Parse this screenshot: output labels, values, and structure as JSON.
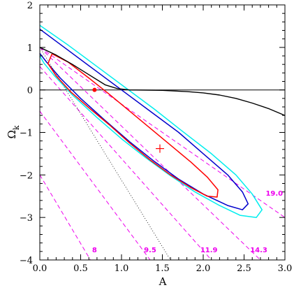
{
  "chart_data": {
    "type": "line",
    "xlabel": "A",
    "ylabel": "Ω",
    "ylabel_sub": "k",
    "xlim": [
      0,
      3
    ],
    "ylim": [
      -4,
      2
    ],
    "x_ticks": [
      {
        "value": 0,
        "label": "0.0"
      },
      {
        "value": 0.5,
        "label": "0.5"
      },
      {
        "value": 1,
        "label": "1.0"
      },
      {
        "value": 1.5,
        "label": "1.5"
      },
      {
        "value": 2,
        "label": "2.0"
      },
      {
        "value": 2.5,
        "label": "2.5"
      },
      {
        "value": 3,
        "label": "3.0"
      }
    ],
    "y_ticks": [
      {
        "value": 2,
        "label": "2"
      },
      {
        "value": 1,
        "label": "1"
      },
      {
        "value": 0,
        "label": "0"
      },
      {
        "value": -1,
        "label": "−1"
      },
      {
        "value": -2,
        "label": "−2"
      },
      {
        "value": -3,
        "label": "−3"
      },
      {
        "value": -4,
        "label": "−4"
      }
    ],
    "colors": {
      "contour_inner": "#ff0000",
      "contour_middle": "#0000cc",
      "contour_outer": "#00eeee",
      "age_lines": "#ee00ee",
      "black_curve": "#000000",
      "dotted_line": "#000000",
      "best_fit": "#ff0000",
      "model_point": "#ff0000"
    },
    "confidence_contours": [
      {
        "level": "inner",
        "points": [
          [
            0.15,
            0.85
          ],
          [
            0.35,
            0.65
          ],
          [
            0.6,
            0.28
          ],
          [
            0.85,
            -0.1
          ],
          [
            1.1,
            -0.5
          ],
          [
            1.35,
            -0.9
          ],
          [
            1.6,
            -1.3
          ],
          [
            1.85,
            -1.7
          ],
          [
            2.05,
            -2.05
          ],
          [
            2.18,
            -2.35
          ],
          [
            2.17,
            -2.52
          ],
          [
            2.05,
            -2.5
          ],
          [
            1.85,
            -2.3
          ],
          [
            1.6,
            -2.0
          ],
          [
            1.35,
            -1.65
          ],
          [
            1.1,
            -1.25
          ],
          [
            0.85,
            -0.82
          ],
          [
            0.6,
            -0.42
          ],
          [
            0.38,
            -0.05
          ],
          [
            0.2,
            0.33
          ],
          [
            0.1,
            0.62
          ],
          [
            0.15,
            0.85
          ]
        ]
      },
      {
        "level": "middle",
        "points": [
          [
            0,
            1.43
          ],
          [
            0.3,
            1.0
          ],
          [
            0.65,
            0.5
          ],
          [
            1.0,
            0.0
          ],
          [
            1.35,
            -0.5
          ],
          [
            1.7,
            -1.0
          ],
          [
            2.0,
            -1.5
          ],
          [
            2.3,
            -2.0
          ],
          [
            2.48,
            -2.4
          ],
          [
            2.55,
            -2.68
          ],
          [
            2.48,
            -2.82
          ],
          [
            2.3,
            -2.72
          ],
          [
            2.0,
            -2.45
          ],
          [
            1.7,
            -2.1
          ],
          [
            1.4,
            -1.68
          ],
          [
            1.1,
            -1.22
          ],
          [
            0.8,
            -0.72
          ],
          [
            0.5,
            -0.2
          ],
          [
            0.25,
            0.28
          ],
          [
            0.08,
            0.66
          ],
          [
            0,
            0.86
          ]
        ]
      },
      {
        "level": "outer",
        "points": [
          [
            0,
            1.52
          ],
          [
            0.35,
            1.05
          ],
          [
            0.7,
            0.55
          ],
          [
            1.05,
            0.05
          ],
          [
            1.4,
            -0.45
          ],
          [
            1.75,
            -0.98
          ],
          [
            2.1,
            -1.5
          ],
          [
            2.4,
            -2.0
          ],
          [
            2.6,
            -2.45
          ],
          [
            2.72,
            -2.82
          ],
          [
            2.65,
            -3.0
          ],
          [
            2.45,
            -2.95
          ],
          [
            2.2,
            -2.72
          ],
          [
            1.9,
            -2.4
          ],
          [
            1.6,
            -2.02
          ],
          [
            1.3,
            -1.6
          ],
          [
            1.0,
            -1.15
          ],
          [
            0.7,
            -0.65
          ],
          [
            0.4,
            -0.12
          ],
          [
            0.18,
            0.33
          ],
          [
            0.05,
            0.63
          ],
          [
            0,
            0.8
          ]
        ]
      }
    ],
    "black_curve": [
      [
        0,
        1.0
      ],
      [
        0.2,
        0.82
      ],
      [
        0.4,
        0.6
      ],
      [
        0.6,
        0.36
      ],
      [
        0.8,
        0.12
      ],
      [
        0.95,
        0.03
      ],
      [
        1.1,
        0.0
      ],
      [
        1.5,
        -0.01
      ],
      [
        1.8,
        -0.04
      ],
      [
        2.0,
        -0.07
      ],
      [
        2.2,
        -0.12
      ],
      [
        2.4,
        -0.2
      ],
      [
        2.6,
        -0.31
      ],
      [
        2.8,
        -0.44
      ],
      [
        3.0,
        -0.6
      ]
    ],
    "zero_line": [
      [
        0,
        0
      ],
      [
        3,
        0
      ]
    ],
    "dotted_line": [
      [
        0,
        1.0
      ],
      [
        1.6,
        -4.0
      ]
    ],
    "age_lines": [
      {
        "label": "8",
        "points": [
          [
            0,
            -2.0
          ],
          [
            0.62,
            -4.0
          ]
        ],
        "label_at": [
          0.67,
          -3.75
        ]
      },
      {
        "label": "9.5",
        "points": [
          [
            0,
            -0.5
          ],
          [
            1.35,
            -4.0
          ]
        ],
        "label_at": [
          1.35,
          -3.75
        ]
      },
      {
        "label": "11.9",
        "points": [
          [
            0,
            0.55
          ],
          [
            2.1,
            -4.0
          ]
        ],
        "label_at": [
          2.07,
          -3.75
        ]
      },
      {
        "label": "14.3",
        "points": [
          [
            0,
            1.0
          ],
          [
            2.7,
            -4.0
          ]
        ],
        "label_at": [
          2.68,
          -3.75
        ]
      },
      {
        "label": "19.0",
        "points": [
          [
            0,
            1.0
          ],
          [
            3.0,
            -3.0
          ]
        ],
        "label_at": [
          2.87,
          -2.42
        ]
      }
    ],
    "best_fit": {
      "x": 1.47,
      "y": -1.38
    },
    "model_point": {
      "x": 0.67,
      "y": 0.0
    }
  }
}
